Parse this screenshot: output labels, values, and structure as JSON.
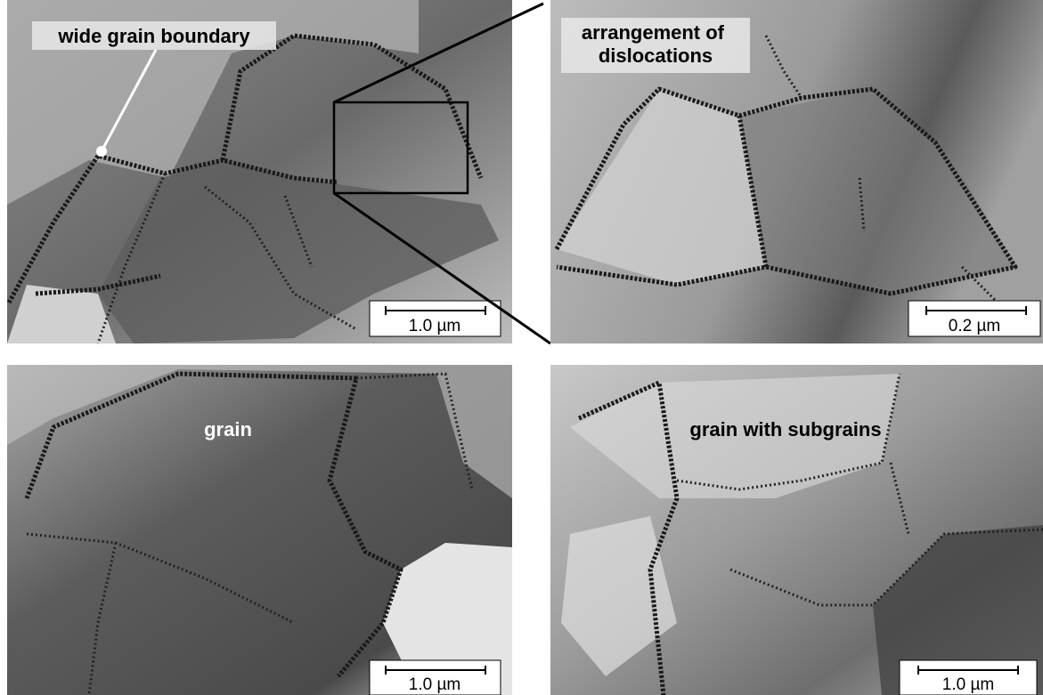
{
  "panels": [
    {
      "label": [
        "wide grain boundary"
      ],
      "scale_bar": "1.0 µm"
    },
    {
      "label": [
        "arrangement of",
        "dislocations"
      ],
      "scale_bar": "0.2 µm"
    },
    {
      "label": [
        "grain"
      ],
      "scale_bar": "1.0 µm"
    },
    {
      "label": [
        "grain with subgrains"
      ],
      "scale_bar": "1.0 µm"
    }
  ]
}
